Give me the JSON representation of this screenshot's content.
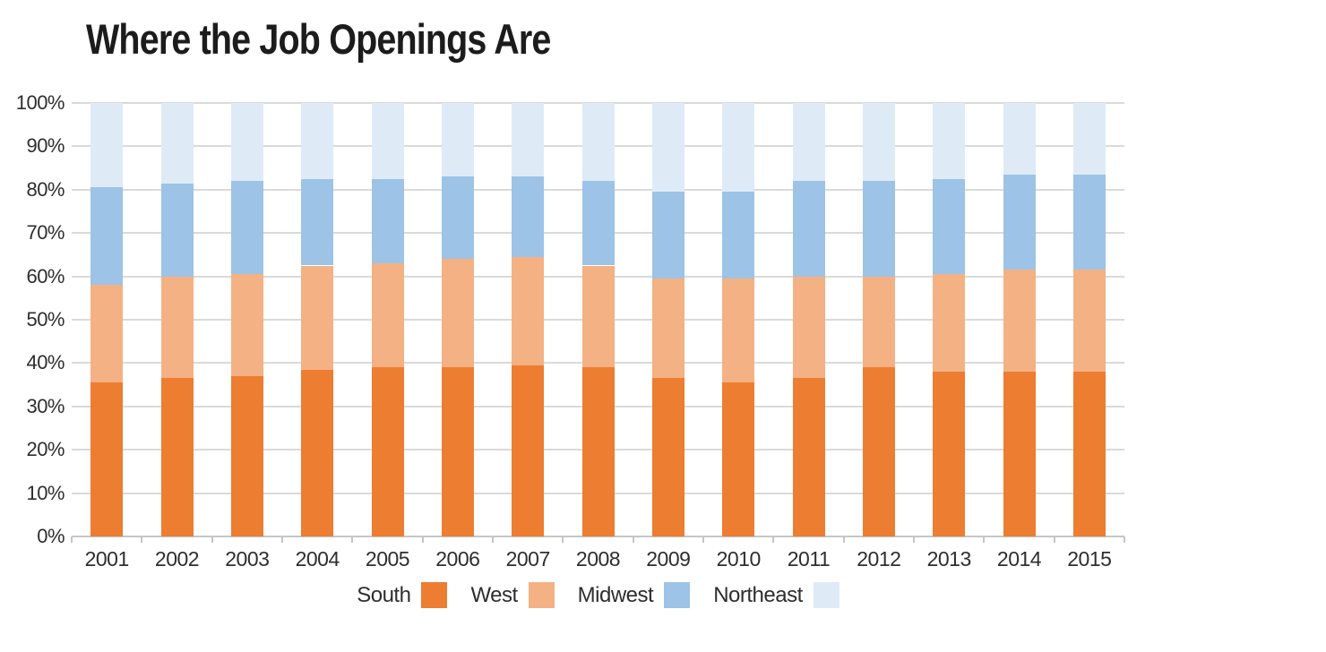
{
  "chart": {
    "title": "Where the Job Openings Are"
  },
  "chart_data": {
    "type": "bar",
    "stacked": true,
    "title": "Where the Job Openings Are",
    "xlabel": "",
    "ylabel": "",
    "ylim": [
      0,
      100
    ],
    "grid": true,
    "legend_position": "bottom",
    "unit": "%",
    "categories": [
      "2001",
      "2002",
      "2003",
      "2004",
      "2005",
      "2006",
      "2007",
      "2008",
      "2009",
      "2010",
      "2011",
      "2012",
      "2013",
      "2014",
      "2015"
    ],
    "yticks": [
      {
        "value": 0,
        "label": "0%"
      },
      {
        "value": 10,
        "label": "10%"
      },
      {
        "value": 20,
        "label": "20%"
      },
      {
        "value": 30,
        "label": "30%"
      },
      {
        "value": 40,
        "label": "40%"
      },
      {
        "value": 50,
        "label": "50%"
      },
      {
        "value": 60,
        "label": "60%"
      },
      {
        "value": 70,
        "label": "70%"
      },
      {
        "value": 80,
        "label": "80%"
      },
      {
        "value": 90,
        "label": "90%"
      },
      {
        "value": 100,
        "label": "100%"
      }
    ],
    "series": [
      {
        "name": "South",
        "color": "#ED7D31",
        "values": [
          35.5,
          36.5,
          37.0,
          38.5,
          39.0,
          39.0,
          39.5,
          39.0,
          36.5,
          35.5,
          36.5,
          39.0,
          38.0,
          38.0,
          38.0
        ]
      },
      {
        "name": "West",
        "color": "#F4B183",
        "values": [
          22.5,
          23.5,
          23.5,
          24.0,
          24.0,
          25.0,
          25.0,
          23.5,
          23.0,
          24.0,
          23.5,
          21.0,
          22.5,
          23.5,
          23.5
        ]
      },
      {
        "name": "Midwest",
        "color": "#9DC3E6",
        "values": [
          22.5,
          21.5,
          21.5,
          20.0,
          19.5,
          19.0,
          18.5,
          19.5,
          20.0,
          20.0,
          22.0,
          22.0,
          22.0,
          22.0,
          22.0
        ]
      },
      {
        "name": "Northeast",
        "color": "#DEEBF7",
        "values": [
          19.5,
          18.5,
          18.0,
          17.5,
          17.5,
          17.0,
          17.0,
          18.0,
          20.5,
          20.5,
          18.0,
          18.0,
          17.5,
          16.5,
          16.5
        ]
      }
    ],
    "colors": {
      "gridline": "#dadada",
      "axis": "#c6c6c6",
      "text": "#2e2e2e",
      "title": "#1c1c1c"
    }
  }
}
